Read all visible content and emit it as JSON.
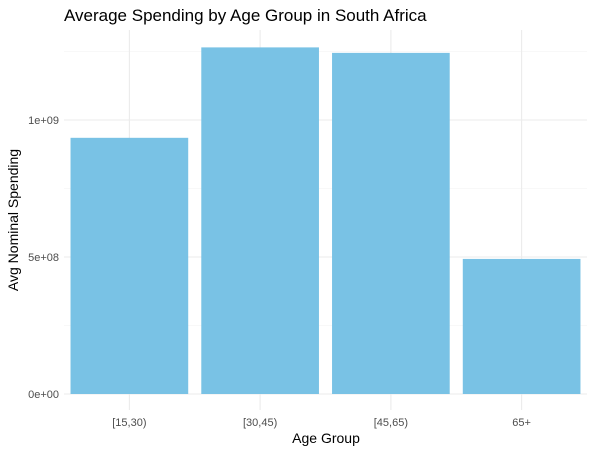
{
  "chart_data": {
    "type": "bar",
    "title": "Average Spending by Age Group in South Africa",
    "xlabel": "Age Group",
    "ylabel": "Avg Nominal Spending",
    "categories": [
      "[15,30)",
      "[30,45)",
      "[45,65)",
      "65+"
    ],
    "values": [
      935000000,
      1265000000,
      1245000000,
      493000000
    ],
    "ylim": [
      0,
      1300000000
    ],
    "yticks": [
      0,
      500000000,
      1000000000
    ],
    "ytick_labels": [
      "0e+00",
      "5e+08",
      "1e+09"
    ],
    "bar_color": "#79c2e5",
    "grid": true,
    "legend": "none"
  }
}
